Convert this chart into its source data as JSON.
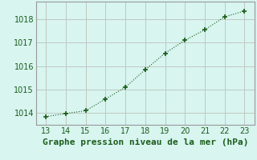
{
  "x": [
    13,
    14,
    15,
    16,
    17,
    18,
    19,
    20,
    21,
    22,
    23
  ],
  "y": [
    1013.85,
    1013.98,
    1014.1,
    1014.6,
    1015.1,
    1015.85,
    1016.55,
    1017.1,
    1017.55,
    1018.1,
    1018.35
  ],
  "line_color": "#1a5c1a",
  "marker_color": "#1a5c1a",
  "background_color": "#d8f5f0",
  "grid_color": "#c0c8c0",
  "spine_color": "#999999",
  "xlabel": "Graphe pression niveau de la mer (hPa)",
  "xlabel_color": "#1a5c1a",
  "tick_color": "#1a5c1a",
  "xlim": [
    12.5,
    23.5
  ],
  "ylim": [
    1013.5,
    1018.75
  ],
  "yticks": [
    1014,
    1015,
    1016,
    1017,
    1018
  ],
  "xticks": [
    13,
    14,
    15,
    16,
    17,
    18,
    19,
    20,
    21,
    22,
    23
  ],
  "title_fontsize": 8,
  "axis_fontsize": 7
}
